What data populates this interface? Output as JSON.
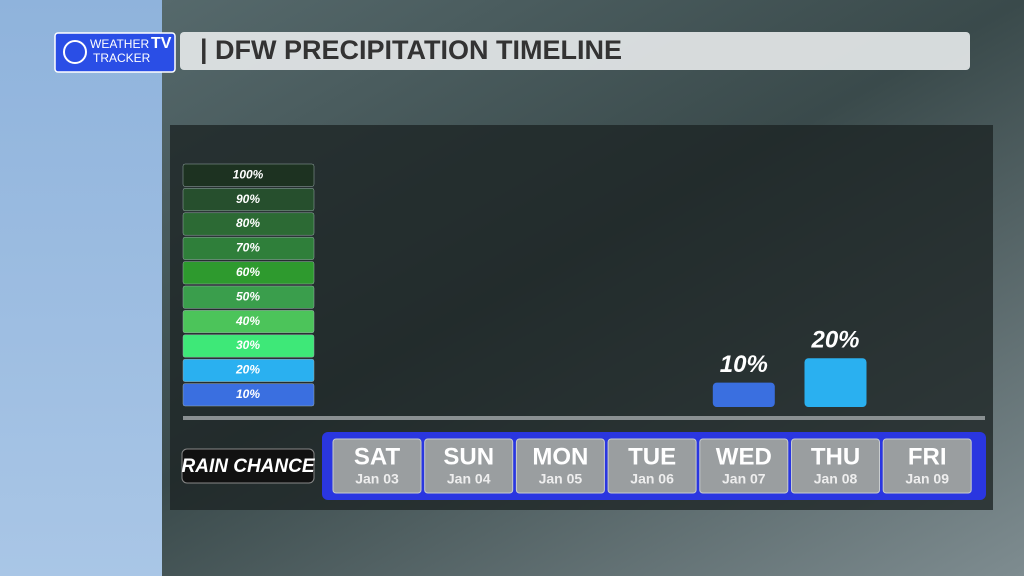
{
  "logo": {
    "line1": "WEATHER",
    "line2": "TRACKER",
    "badge": "TV"
  },
  "chart_data": {
    "type": "bar",
    "title": "DFW PRECIPITATION TIMELINE",
    "row_label": "RAIN CHANCE",
    "categories": [
      "SAT",
      "SUN",
      "MON",
      "TUE",
      "WED",
      "THU",
      "FRI"
    ],
    "dates": [
      "Jan 03",
      "Jan 04",
      "Jan 05",
      "Jan 06",
      "Jan 07",
      "Jan 08",
      "Jan 09"
    ],
    "values": [
      0,
      0,
      0,
      0,
      10,
      20,
      0
    ],
    "value_labels": [
      null,
      null,
      null,
      null,
      "10%",
      "20%",
      null
    ],
    "ylim": [
      0,
      100
    ],
    "yticks": [
      {
        "value": 10,
        "label": "10%"
      },
      {
        "value": 20,
        "label": "20%"
      },
      {
        "value": 30,
        "label": "30%"
      },
      {
        "value": 40,
        "label": "40%"
      },
      {
        "value": 50,
        "label": "50%"
      },
      {
        "value": 60,
        "label": "60%"
      },
      {
        "value": 70,
        "label": "70%"
      },
      {
        "value": 80,
        "label": "80%"
      },
      {
        "value": 90,
        "label": "90%"
      },
      {
        "value": 100,
        "label": "100%"
      }
    ],
    "scale_colors": [
      "#3a6fe0",
      "#2ab0f0",
      "#3ee878",
      "#4cc45a",
      "#3a9e4c",
      "#2e9a2e",
      "#2f7f3a",
      "#2c6a34",
      "#264f2d",
      "#1d3221"
    ]
  }
}
